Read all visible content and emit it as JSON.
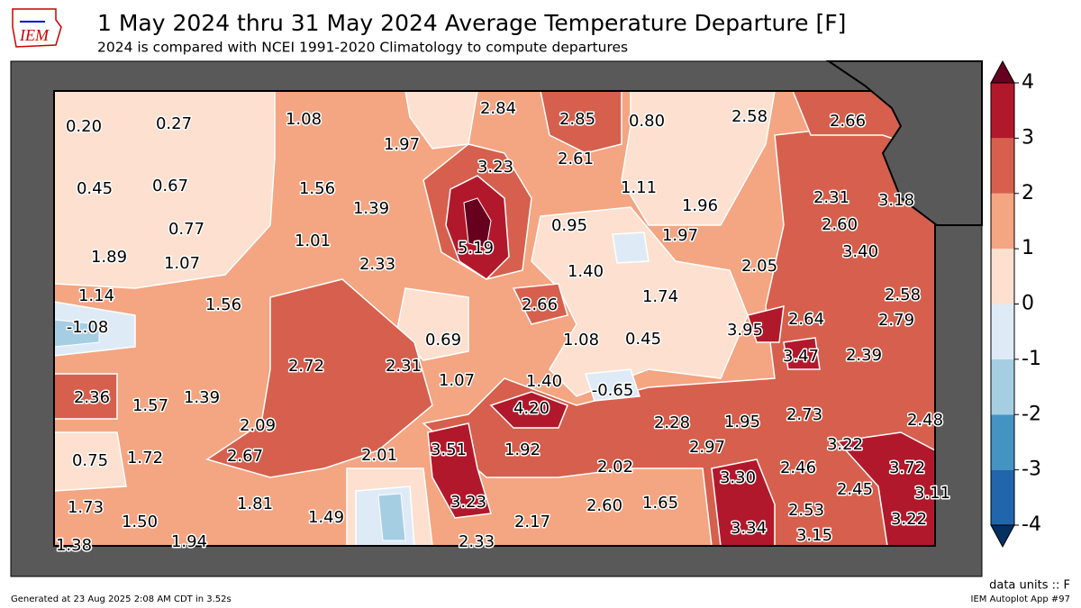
{
  "map": {
    "title": "1 May 2024 thru 31 May 2024 Average Temperature Departure [F]",
    "subtitle": "2024 is compared with NCEI 1991-2020 Climatology to compute departures",
    "logo": "IEM",
    "units_note": "data units :: F",
    "generated": "Generated at 23 Aug 2025 2:08 AM CDT in 3.52s",
    "app": "IEM Autoplot App #97",
    "station_values": [
      "0.20",
      "0.27",
      "1.08",
      "1.97",
      "2.84",
      "2.85",
      "0.80",
      "2.58",
      "2.66",
      "0.45",
      "0.67",
      "1.56",
      "1.39",
      "3.23",
      "2.61",
      "1.11",
      "1.96",
      "2.31",
      "3.18",
      "0.77",
      "1.89",
      "1.07",
      "1.01",
      "2.33",
      "5.19",
      "0.95",
      "1.97",
      "2.60",
      "3.40",
      "1.40",
      "2.05",
      "1.14",
      "1.56",
      "2.66",
      "1.74",
      "2.58",
      "2.64",
      "2.79",
      "-1.08",
      "0.69",
      "1.08",
      "0.45",
      "3.95",
      "3.47",
      "2.39",
      "2.72",
      "2.31",
      "1.07",
      "1.40",
      "-0.65",
      "2.36",
      "1.57",
      "1.39",
      "4.20",
      "2.73",
      "2.48",
      "2.09",
      "2.28",
      "1.95",
      "3.22",
      "2.97",
      "3.51",
      "1.92",
      "2.01",
      "0.75",
      "1.72",
      "2.67",
      "2.02",
      "2.46",
      "3.72",
      "3.30",
      "3.23",
      "2.45",
      "3.11",
      "1.73",
      "1.81",
      "1.49",
      "2.17",
      "2.60",
      "1.65",
      "2.53",
      "3.22",
      "1.50",
      "3.34",
      "3.15",
      "1.38",
      "1.94",
      "2.33"
    ],
    "colorbar": {
      "ticks": [
        -4,
        -3,
        -2,
        -1,
        0,
        1,
        2,
        3,
        4
      ],
      "colors": [
        "#2166ac",
        "#4393c3",
        "#a6cee3",
        "#deebf7",
        "#fde0d0",
        "#f4a582",
        "#d6604d",
        "#b2182b"
      ],
      "under_color": "#053061",
      "over_color": "#67001f"
    }
  }
}
